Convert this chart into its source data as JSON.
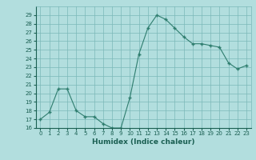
{
  "x": [
    0,
    1,
    2,
    3,
    4,
    5,
    6,
    7,
    8,
    9,
    10,
    11,
    12,
    13,
    14,
    15,
    16,
    17,
    18,
    19,
    20,
    21,
    22,
    23
  ],
  "y": [
    17,
    17.8,
    20.5,
    20.5,
    18,
    17.3,
    17.3,
    16.5,
    16,
    16,
    19.5,
    24.5,
    27.5,
    29,
    28.5,
    27.5,
    26.5,
    25.7,
    25.7,
    25.5,
    25.3,
    23.5,
    22.8,
    23.2
  ],
  "xlabel": "Humidex (Indice chaleur)",
  "ylim": [
    16,
    30
  ],
  "xlim": [
    -0.5,
    23.5
  ],
  "yticks": [
    16,
    17,
    18,
    19,
    20,
    21,
    22,
    23,
    24,
    25,
    26,
    27,
    28,
    29
  ],
  "xticks": [
    0,
    1,
    2,
    3,
    4,
    5,
    6,
    7,
    8,
    9,
    10,
    11,
    12,
    13,
    14,
    15,
    16,
    17,
    18,
    19,
    20,
    21,
    22,
    23
  ],
  "line_color": "#2e7d6e",
  "marker_color": "#2e7d6e",
  "bg_color": "#b2dede",
  "grid_color": "#7ab8b8",
  "tick_label_color": "#1a5f52",
  "xlabel_color": "#1a5f52",
  "marker": "+"
}
